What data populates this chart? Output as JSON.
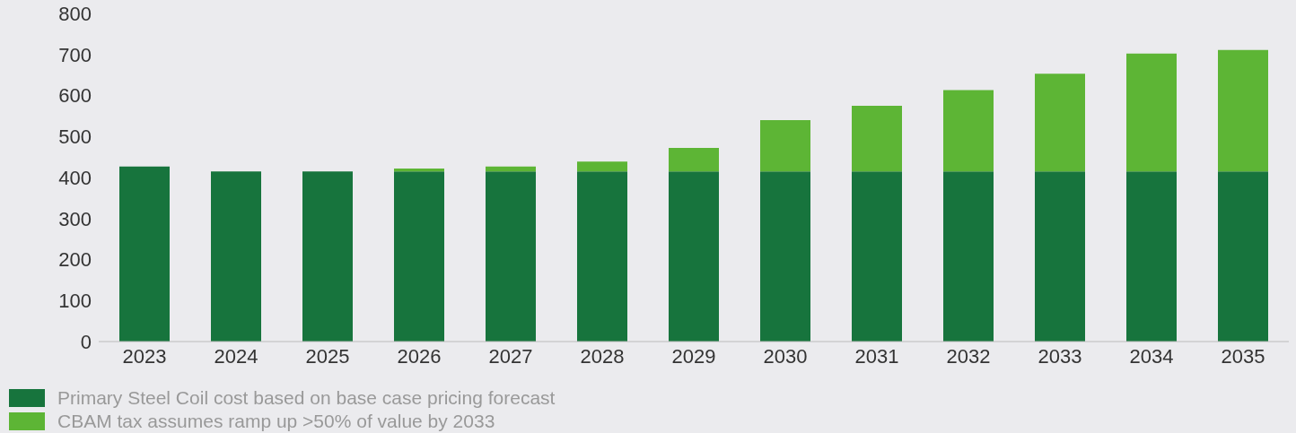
{
  "chart_data": {
    "type": "bar",
    "stacked": true,
    "categories": [
      "2023",
      "2024",
      "2025",
      "2026",
      "2027",
      "2028",
      "2029",
      "2030",
      "2031",
      "2032",
      "2033",
      "2034",
      "2035"
    ],
    "series": [
      {
        "name": "Primary Steel Coil cost based on base case pricing forecast",
        "color": "#17743d",
        "values": [
          427,
          415,
          415,
          415,
          415,
          415,
          415,
          415,
          415,
          415,
          415,
          415,
          415
        ]
      },
      {
        "name": "CBAM tax assumes ramp up >50% of value by 2033",
        "color": "#5db535",
        "values": [
          0,
          0,
          0,
          7,
          12,
          24,
          57,
          125,
          160,
          198,
          238,
          287,
          296
        ]
      }
    ],
    "ylim": [
      0,
      800
    ],
    "yticks": [
      0,
      100,
      200,
      300,
      400,
      500,
      600,
      700,
      800
    ],
    "grid": false,
    "legend": "bottom"
  }
}
